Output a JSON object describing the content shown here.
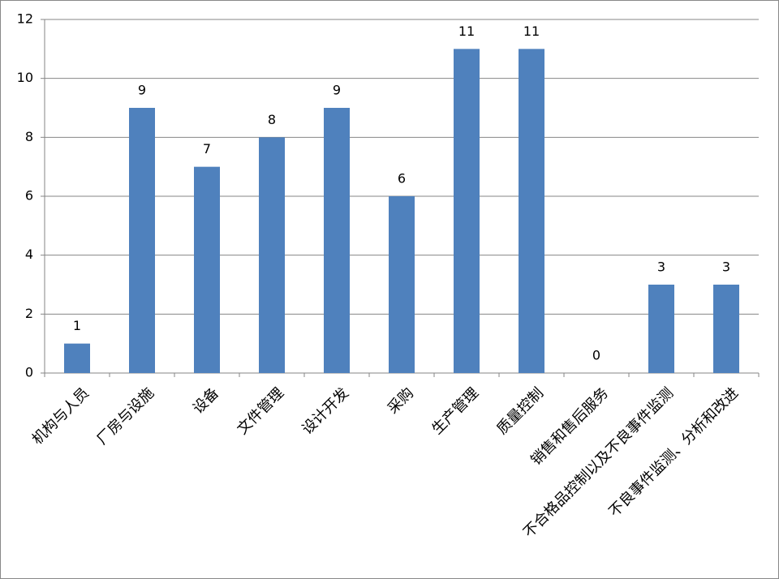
{
  "chart_data": {
    "type": "bar",
    "categories": [
      "机构与人员",
      "厂房与设施",
      "设备",
      "文件管理",
      "设计开发",
      "采购",
      "生产管理",
      "质量控制",
      "销售和售后服务",
      "不合格品控制以及不良事件监测",
      "不良事件监测、分析和改进"
    ],
    "values": [
      1,
      9,
      7,
      8,
      9,
      6,
      11,
      11,
      0,
      3,
      3
    ],
    "color": "#4f81bd",
    "ylim": [
      0,
      12
    ],
    "yticks": [
      0,
      2,
      4,
      6,
      8,
      10,
      12
    ],
    "grid": true
  }
}
